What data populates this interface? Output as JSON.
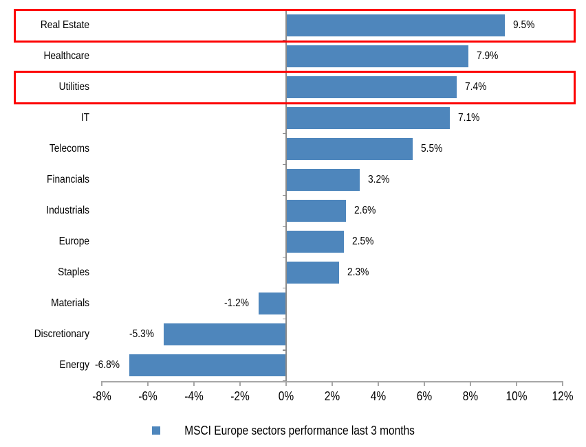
{
  "chart_data": {
    "type": "bar",
    "orientation": "horizontal",
    "categories": [
      "Real Estate",
      "Healthcare",
      "Utilities",
      "IT",
      "Telecoms",
      "Financials",
      "Industrials",
      "Europe",
      "Staples",
      "Materials",
      "Discretionary",
      "Energy"
    ],
    "values": [
      9.5,
      7.9,
      7.4,
      7.1,
      5.5,
      3.2,
      2.6,
      2.5,
      2.3,
      -1.2,
      -5.3,
      -6.8
    ],
    "data_labels": [
      "9.5%",
      "7.9%",
      "7.4%",
      "7.1%",
      "5.5%",
      "3.2%",
      "2.6%",
      "2.5%",
      "2.3%",
      "-1.2%",
      "-5.3%",
      "-6.8%"
    ],
    "x_ticks": [
      "-8%",
      "-6%",
      "-4%",
      "-2%",
      "0%",
      "2%",
      "4%",
      "6%",
      "8%",
      "10%",
      "12%"
    ],
    "x_tick_values": [
      -8,
      -6,
      -4,
      -2,
      0,
      2,
      4,
      6,
      8,
      10,
      12
    ],
    "xlim": [
      -8,
      12
    ],
    "grid": false,
    "legend": "MSCI Europe sectors performance last 3 months",
    "legend_position": "bottom",
    "bar_color": "#4E86BC",
    "axis_color": "#A6A6A6",
    "zero_line_color": "#8C8C8C",
    "text_color": "#000000",
    "highlight_box_color": "#FD0202",
    "highlighted_categories": [
      "Real Estate",
      "Utilities"
    ]
  }
}
